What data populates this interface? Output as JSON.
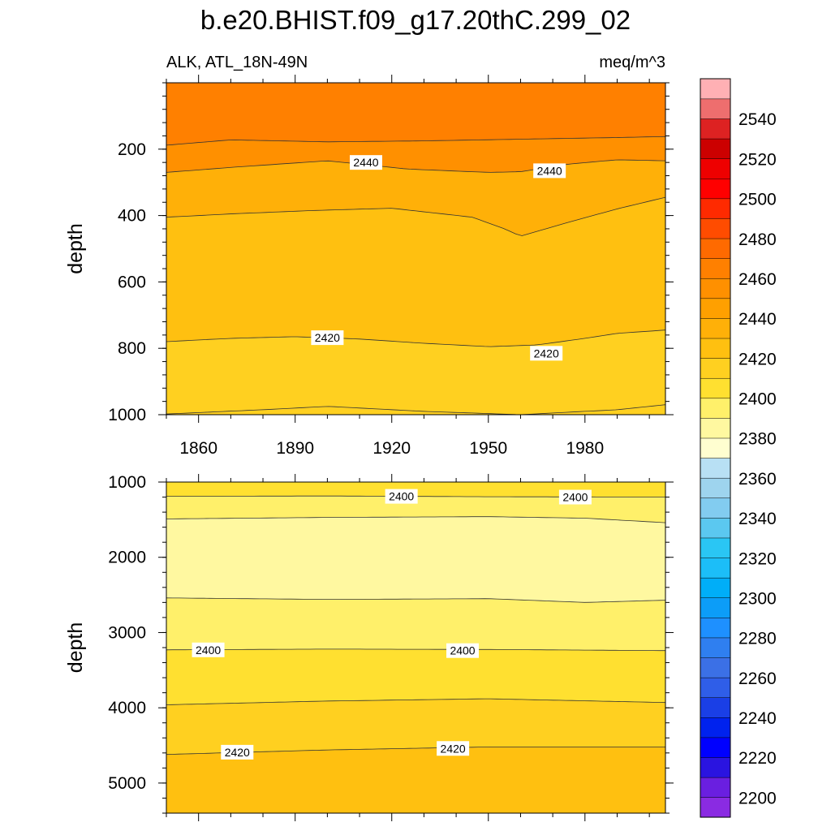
{
  "title": "b.e20.BHIST.f09_g17.20thC.299_02",
  "chart_data": {
    "type": "contour",
    "title": "b.e20.BHIST.f09_g17.20thC.299_02",
    "left_subtitle": "ALK, ATL_18N-49N",
    "right_subtitle": "meq/m^3",
    "ylabel": "depth",
    "xlim": [
      1850,
      2005
    ],
    "x_ticks": [
      1860,
      1890,
      1920,
      1950,
      1980
    ],
    "top_panel": {
      "ylim": [
        0,
        1000
      ],
      "y_ticks": [
        200,
        400,
        600,
        800,
        1000
      ],
      "contours": [
        {
          "level": 2460,
          "x": [
            1850,
            1870,
            1900,
            1930,
            1960,
            1990,
            2005
          ],
          "depth": [
            188,
            172,
            178,
            175,
            170,
            165,
            162
          ]
        },
        {
          "level": 2440,
          "x": [
            1850,
            1870,
            1900,
            1925,
            1950,
            1960,
            1975,
            1990,
            2005
          ],
          "depth": [
            270,
            255,
            235,
            260,
            270,
            268,
            245,
            232,
            235
          ]
        },
        {
          "level": 2430,
          "x": [
            1850,
            1870,
            1895,
            1920,
            1945,
            1955,
            1960,
            1975,
            1990,
            2005
          ],
          "depth": [
            405,
            395,
            385,
            378,
            405,
            440,
            462,
            420,
            380,
            345
          ]
        },
        {
          "level": 2420,
          "x": [
            1850,
            1870,
            1890,
            1910,
            1930,
            1950,
            1965,
            1980,
            1990,
            2005
          ],
          "depth": [
            780,
            770,
            765,
            772,
            785,
            795,
            790,
            770,
            755,
            745
          ]
        },
        {
          "level": 2410,
          "x": [
            1850,
            1880,
            1900,
            1930,
            1960,
            1990,
            2005
          ],
          "depth": [
            998,
            985,
            975,
            990,
            1000,
            985,
            970
          ]
        }
      ],
      "labels": [
        {
          "text": "2440",
          "x": 1912,
          "depth": 240
        },
        {
          "text": "2440",
          "x": 1969,
          "depth": 265
        },
        {
          "text": "2420",
          "x": 1900,
          "depth": 768
        },
        {
          "text": "2420",
          "x": 1968,
          "depth": 815
        }
      ]
    },
    "bottom_panel": {
      "ylim": [
        1000,
        5400
      ],
      "y_ticks": [
        1000,
        2000,
        3000,
        4000,
        5000
      ],
      "contours": [
        {
          "level": 2400,
          "x": [
            1850,
            1900,
            1950,
            2005
          ],
          "depth": [
            1190,
            1185,
            1195,
            1200
          ]
        },
        {
          "level": 2390,
          "x": [
            1850,
            1900,
            1950,
            1980,
            2005
          ],
          "depth": [
            1490,
            1470,
            1460,
            1480,
            1540
          ]
        },
        {
          "level": 2390,
          "x": [
            1850,
            1900,
            1950,
            1980,
            2005
          ],
          "depth": [
            2540,
            2560,
            2550,
            2600,
            2570
          ]
        },
        {
          "level": 2400,
          "x": [
            1850,
            1900,
            1950,
            2005
          ],
          "depth": [
            3230,
            3220,
            3225,
            3240
          ]
        },
        {
          "level": 2410,
          "x": [
            1850,
            1900,
            1950,
            2005
          ],
          "depth": [
            3960,
            3910,
            3880,
            3930
          ]
        },
        {
          "level": 2420,
          "x": [
            1850,
            1900,
            1950,
            2005
          ],
          "depth": [
            4620,
            4560,
            4520,
            4520
          ]
        }
      ],
      "labels": [
        {
          "text": "2400",
          "x": 1923,
          "depth": 1190
        },
        {
          "text": "2400",
          "x": 1977,
          "depth": 1200
        },
        {
          "text": "2400",
          "x": 1863,
          "depth": 3230
        },
        {
          "text": "2400",
          "x": 1942,
          "depth": 3240
        },
        {
          "text": "2420",
          "x": 1872,
          "depth": 4590
        },
        {
          "text": "2420",
          "x": 1939,
          "depth": 4540
        }
      ]
    },
    "colorbar": {
      "levels": [
        2190,
        2200,
        2210,
        2220,
        2230,
        2240,
        2250,
        2260,
        2270,
        2280,
        2290,
        2300,
        2310,
        2320,
        2330,
        2340,
        2350,
        2360,
        2370,
        2380,
        2390,
        2400,
        2410,
        2420,
        2430,
        2440,
        2450,
        2460,
        2470,
        2480,
        2490,
        2500,
        2510,
        2520,
        2530,
        2540,
        2550
      ],
      "colors": [
        "#8a2be2",
        "#6a1fe0",
        "#2a14e0",
        "#0000ff",
        "#0022ee",
        "#1a3fe6",
        "#2f5ee8",
        "#3b70e6",
        "#2f7ff0",
        "#1e90ff",
        "#0c9df8",
        "#00aef8",
        "#1cbef8",
        "#2ac6f4",
        "#5bc8f0",
        "#82ccf0",
        "#9ed4ee",
        "#b8e0f4",
        "#fffed0",
        "#fff8a0",
        "#fff06a",
        "#ffe030",
        "#ffd020",
        "#ffc010",
        "#ffb008",
        "#ffa000",
        "#ff9000",
        "#ff8000",
        "#ff6a00",
        "#ff4c00",
        "#ff2a00",
        "#ff0000",
        "#ee0000",
        "#cc0000",
        "#dd2222",
        "#ee6e6e",
        "#ffb0b4"
      ],
      "labels": [
        "2200",
        "2220",
        "2240",
        "2260",
        "2280",
        "2300",
        "2320",
        "2340",
        "2360",
        "2380",
        "2400",
        "2420",
        "2440",
        "2460",
        "2480",
        "2500",
        "2520",
        "2540"
      ]
    },
    "legend_placement": "right",
    "grid": false
  }
}
